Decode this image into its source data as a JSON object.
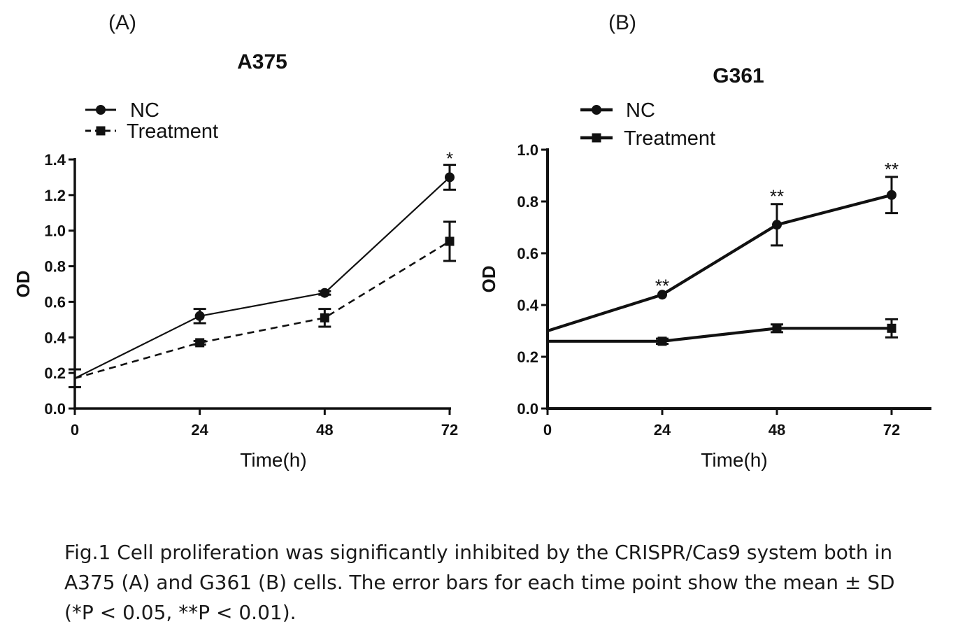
{
  "chart_data": [
    {
      "type": "line",
      "panel": "(A)",
      "title": "A375",
      "xlabel": "Time(h)",
      "ylabel": "OD",
      "x": [
        0,
        24,
        48,
        72
      ],
      "xticks": [
        "0",
        "24",
        "48",
        "72"
      ],
      "yticks": [
        "0.0",
        "0.2",
        "0.4",
        "0.6",
        "0.8",
        "1.0",
        "1.2",
        "1.4"
      ],
      "xlim": [
        0,
        72
      ],
      "ylim": [
        0,
        1.4
      ],
      "legend_position": "top-left",
      "series": [
        {
          "name": "NC",
          "marker": "circle",
          "line": "solid",
          "values": [
            0.17,
            0.52,
            0.65,
            1.3
          ],
          "errors": [
            0.05,
            0.04,
            0.01,
            0.07
          ]
        },
        {
          "name": "Treatment",
          "marker": "square",
          "line": "dashed",
          "values": [
            0.17,
            0.37,
            0.51,
            0.94
          ],
          "errors": [
            0.05,
            0.01,
            0.05,
            0.11
          ]
        }
      ],
      "annotations": [
        {
          "x": 72,
          "text": "*"
        }
      ]
    },
    {
      "type": "line",
      "panel": "(B)",
      "title": "G361",
      "xlabel": "Time(h)",
      "ylabel": "OD",
      "x": [
        0,
        24,
        48,
        72
      ],
      "xticks": [
        "0",
        "24",
        "48",
        "72"
      ],
      "yticks": [
        "0.0",
        "0.2",
        "0.4",
        "0.6",
        "0.8",
        "1.0"
      ],
      "xlim": [
        0,
        72
      ],
      "ylim": [
        0,
        1.0
      ],
      "legend_position": "top-left",
      "series": [
        {
          "name": "NC",
          "marker": "circle",
          "line": "solid",
          "values": [
            0.3,
            0.44,
            0.71,
            0.825
          ],
          "errors": [
            0.0,
            0.005,
            0.08,
            0.07
          ]
        },
        {
          "name": "Treatment",
          "marker": "square",
          "line": "solid",
          "values": [
            0.26,
            0.26,
            0.31,
            0.31
          ],
          "errors": [
            0.0,
            0.01,
            0.015,
            0.035
          ]
        }
      ],
      "annotations": [
        {
          "x": 24,
          "text": "**"
        },
        {
          "x": 48,
          "text": "**"
        },
        {
          "x": 72,
          "text": "**"
        }
      ]
    }
  ],
  "caption": {
    "line1": "Fig.1  Cell proliferation was significantly inhibited by the CRISPR/Cas9 system both in",
    "line2": "A375 (A) and G361 (B) cells. The error bars for each time point show the mean ± SD",
    "line3": "(*P < 0.05, **P < 0.01)."
  }
}
